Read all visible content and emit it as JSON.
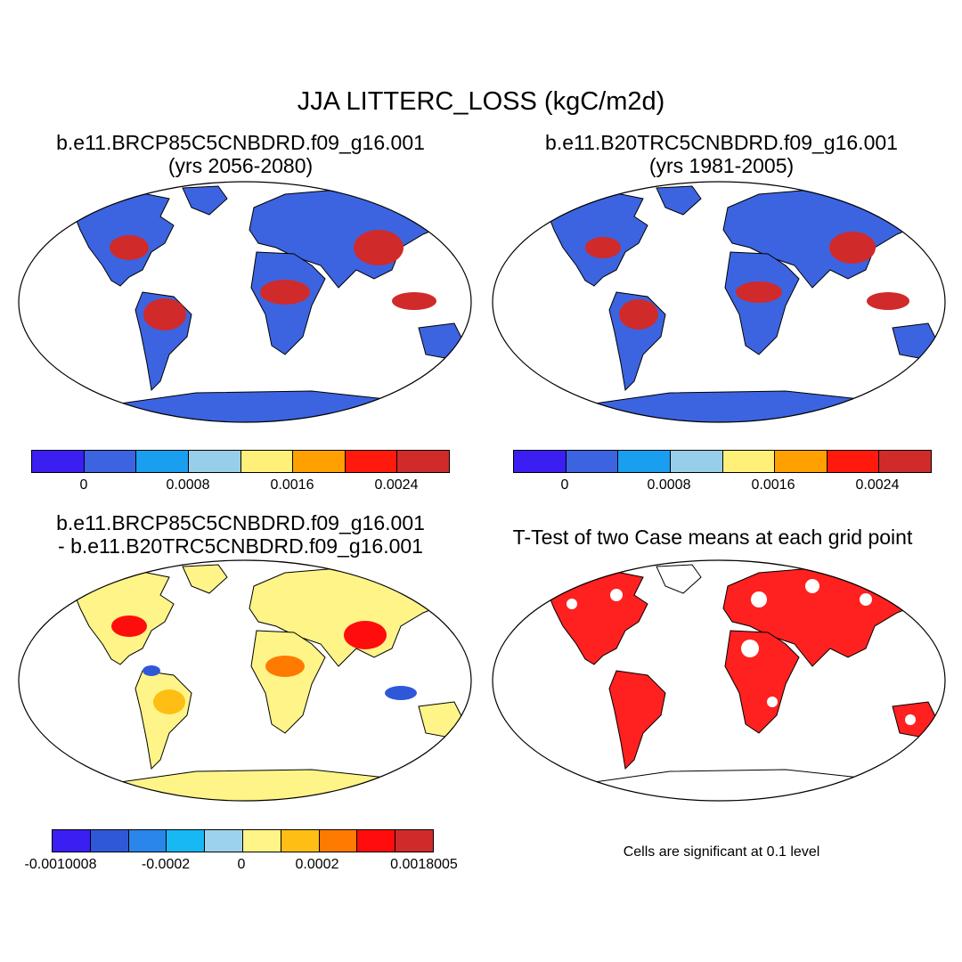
{
  "title": "JJA LITTERC_LOSS (kgC/m2d)",
  "panels": {
    "case1": {
      "line1": "b.e11.BRCP85C5CNBDRD.f09_g16.001",
      "line2": "(yrs 2056-2080)"
    },
    "case2": {
      "line1": "b.e11.B20TRC5CNBDRD.f09_g16.001",
      "line2": "(yrs 1981-2005)"
    },
    "diff": {
      "line1": "b.e11.BRCP85C5CNBDRD.f09_g16.001",
      "line2": "- b.e11.B20TRC5CNBDRD.f09_g16.001"
    },
    "ttest": {
      "line1": "T-Test of two Case means at each grid point"
    }
  },
  "colorbars": {
    "case": {
      "colors": [
        "#3b1ef2",
        "#3c64e0",
        "#1a9ef0",
        "#97cfeb",
        "#fff07a",
        "#ffa000",
        "#ff1a0d",
        "#d12a2a"
      ],
      "ticks": [
        "0",
        "0.0008",
        "0.0016",
        "0.0024"
      ]
    },
    "diff": {
      "colors": [
        "#3b1ef2",
        "#2f58d8",
        "#2a86ea",
        "#18b8f4",
        "#9cd2ee",
        "#fff488",
        "#ffbe14",
        "#ff7a00",
        "#ff0d0d",
        "#d12a2a"
      ],
      "ticks": [
        "-0.0010008",
        "-0.0002",
        "0",
        "0.0002",
        "0.0018005"
      ]
    }
  },
  "note": "Cells are significant at 0.1 level"
}
